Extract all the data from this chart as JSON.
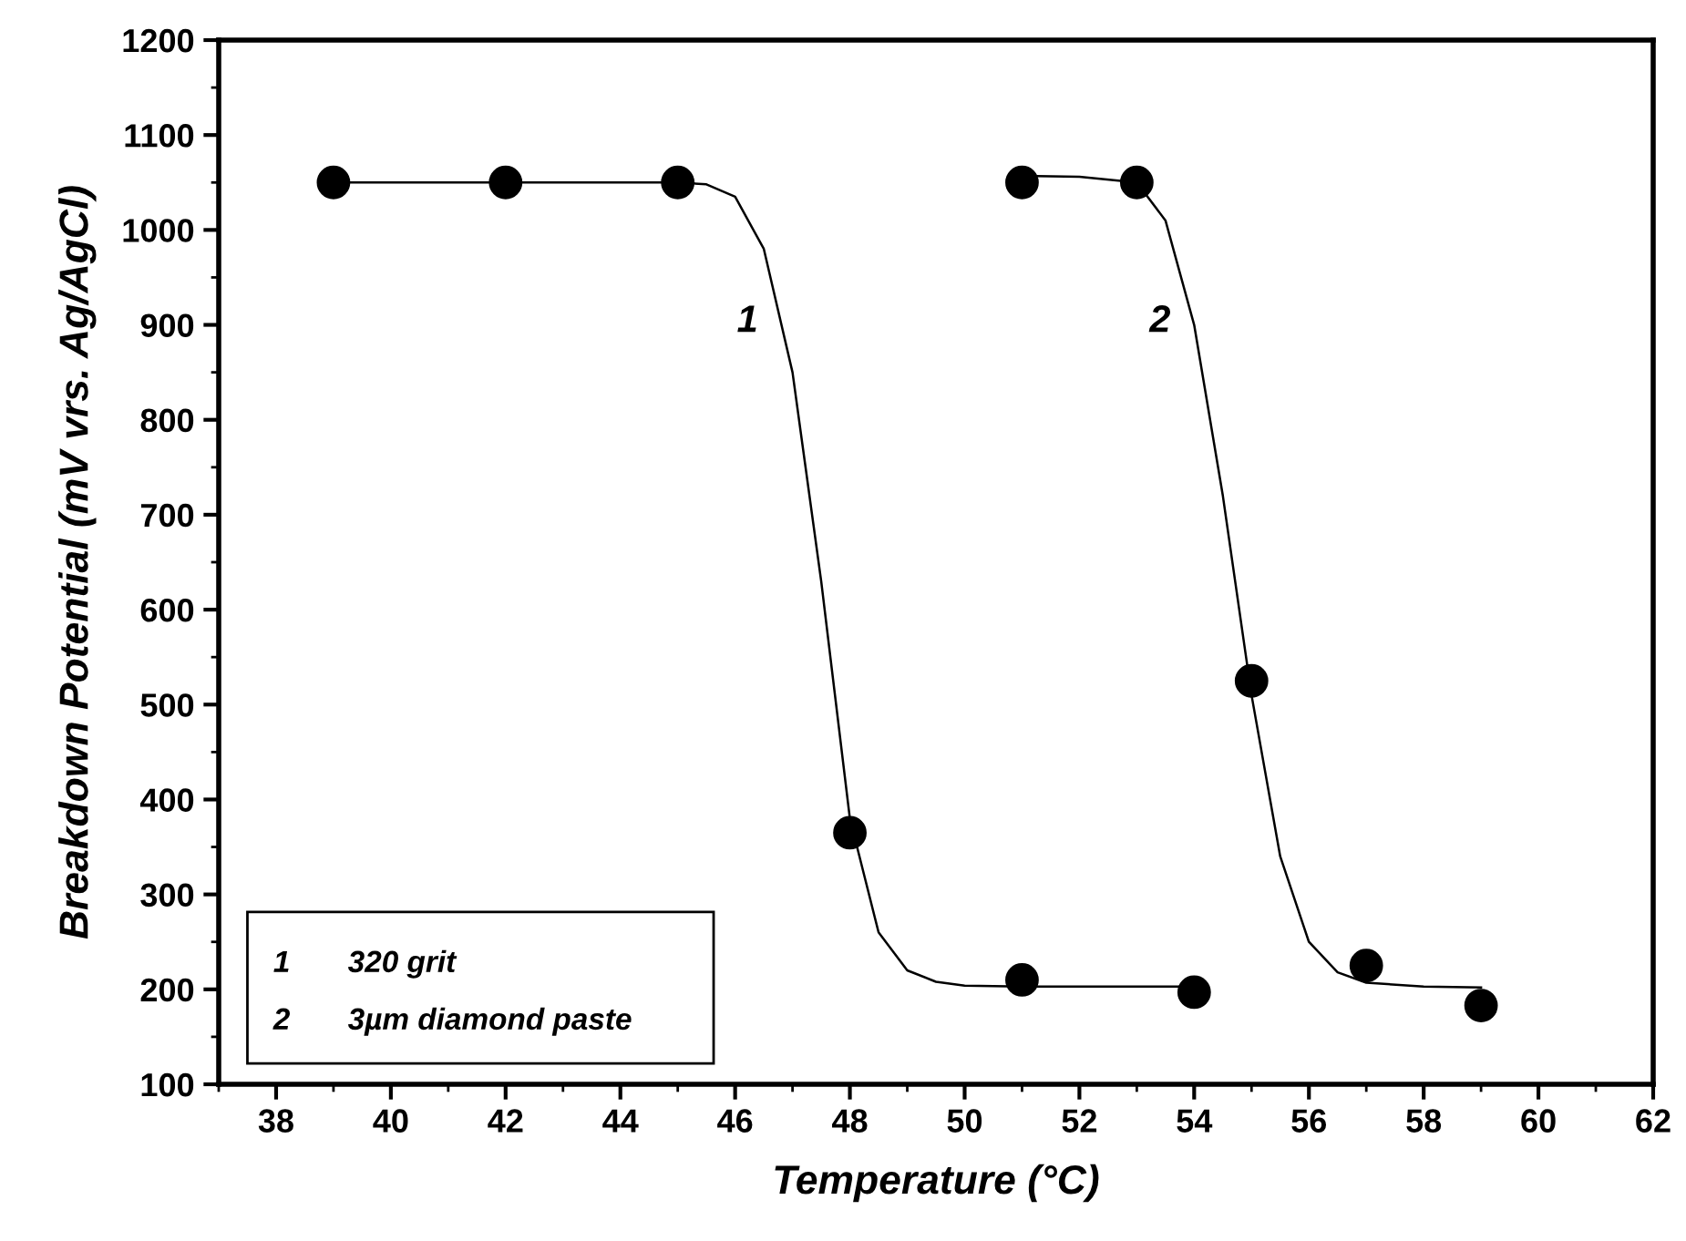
{
  "chart_data": {
    "type": "scatter",
    "xlabel": "Temperature (°C)",
    "ylabel": "Breakdown Potential (mV vrs. Ag/AgCl)",
    "xlim": [
      37,
      62
    ],
    "xticks": [
      38,
      40,
      42,
      44,
      46,
      48,
      50,
      52,
      54,
      56,
      58,
      60,
      62
    ],
    "ylim": [
      100,
      1200
    ],
    "yticks": [
      100,
      200,
      300,
      400,
      500,
      600,
      700,
      800,
      900,
      1000,
      1100,
      1200
    ],
    "grid": false,
    "marker": "circle",
    "annotations": [
      "1",
      "2",
      "1",
      "320 grit",
      "2",
      "3µm diamond paste"
    ],
    "series": [
      {
        "color": "#000000",
        "x": [
          39,
          42,
          45,
          48,
          51,
          54
        ],
        "values": [
          1050,
          1050,
          1050,
          365,
          210,
          197
        ]
      },
      {
        "color": "#000000",
        "x": [
          51,
          53,
          55,
          57,
          59
        ],
        "values": [
          1050,
          1050,
          525,
          225,
          183
        ]
      },
      {
        "type": "line",
        "marker": "none",
        "color": "#000000",
        "x": [
          39,
          45,
          45.5,
          46,
          46.5,
          47,
          47.5,
          48,
          48.5,
          49,
          49.5,
          50,
          51,
          54
        ],
        "values": [
          1050,
          1050,
          1048,
          1035,
          980,
          850,
          630,
          380,
          260,
          220,
          208,
          204,
          203,
          203
        ]
      },
      {
        "type": "line",
        "marker": "none",
        "color": "#000000",
        "x": [
          51,
          52,
          53,
          53.5,
          54,
          54.5,
          55,
          55.5,
          56,
          56.5,
          57,
          58,
          59
        ],
        "values": [
          1057,
          1056,
          1050,
          1010,
          900,
          720,
          510,
          340,
          250,
          218,
          207,
          203,
          202
        ]
      }
    ]
  }
}
